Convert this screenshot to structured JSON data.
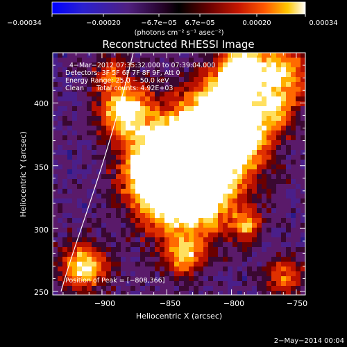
{
  "colorbar": {
    "ticks": [
      "−0.00034",
      "−0.00020",
      "−6.7e−05",
      "6.7e−05",
      "0.00020",
      "0.00034"
    ],
    "unit_label": "(photons cm⁻² s⁻¹ asec⁻²)",
    "colors": [
      "#0000ff",
      "#2a20d0",
      "#502080",
      "#300030",
      "#000000",
      "#5a0000",
      "#b81000",
      "#ff5000",
      "#ffc000",
      "#ffffff"
    ]
  },
  "title": "Reconstructed RHESSI Image",
  "annotations": {
    "line1": "4−Mar−2012 07:35:32.000 to 07:39:04.000",
    "line2": "Detectors: 3F 5F 6F 7F 8F 9F, Att 0",
    "line3": "Energy Range: 25.0 − 50.0 keV",
    "line4": "Clean      Total counts: 4.92E+03",
    "peak": "Position of Peak = [−808,366]"
  },
  "axes": {
    "xlabel": "Heliocentric X (arcsec)",
    "ylabel": "Heliocentric Y (arcsec)",
    "xticks": [
      "−900",
      "−850",
      "−800",
      "−750"
    ],
    "yticks": [
      "250",
      "300",
      "350",
      "400"
    ],
    "xlim": [
      -938,
      -743
    ],
    "ylim": [
      247,
      440
    ]
  },
  "footer": {
    "date": "2−May−2014 00:04"
  }
}
